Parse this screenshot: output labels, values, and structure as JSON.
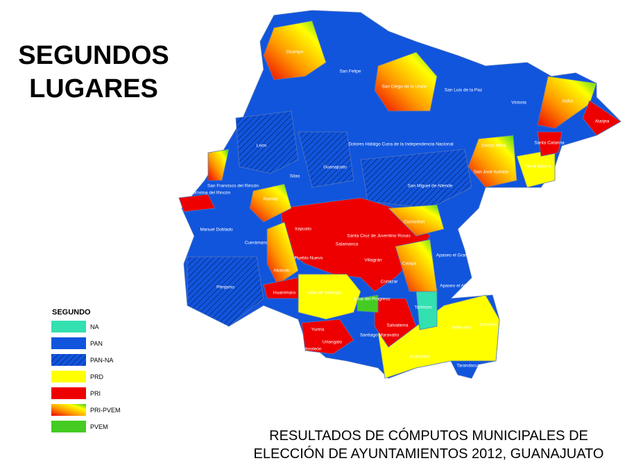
{
  "title": [
    "SEGUNDOS",
    "LUGARES"
  ],
  "legend": {
    "title": "SEGUNDO",
    "items": [
      {
        "name": "NA",
        "color": "#33e0b0"
      },
      {
        "name": "PAN",
        "color": "#1155dd"
      },
      {
        "name": "PAN-NA",
        "color": "#1155dd",
        "hatch": true
      },
      {
        "name": "PRD",
        "color": "#ffff00"
      },
      {
        "name": "PRI",
        "color": "#ee0000"
      },
      {
        "name": "PRI-PVEM",
        "colors": [
          "#ee0000",
          "#ff9900",
          "#ffff00",
          "#33cc33"
        ]
      },
      {
        "name": "PVEM",
        "color": "#44cc22"
      }
    ]
  },
  "municipalities": [
    "Ocampo",
    "San Felipe",
    "San Diego de la Unión",
    "San Luis de la Paz",
    "Victoria",
    "Xichú",
    "Atarjea",
    "León",
    "Dolores Hidalgo Cuna de la Independencia Nacional",
    "Doctor Mora",
    "Santa Catarina",
    "Guanajuato",
    "Silao",
    "San José Iturbide",
    "Tierra Blanca",
    "San Francisco del Rincón",
    "Purísima del Rincón",
    "San Miguel de Allende",
    "Romita",
    "Irapuato",
    "Comonfort",
    "Manuel Doblado",
    "Santa Cruz de Juventino Rosas",
    "Salamanca",
    "Cuerámaro",
    "Apaseo el Grande",
    "Pueblo Nuevo",
    "Villagrán",
    "Celaya",
    "Abasolo",
    "Cortazar",
    "Apaseo el Alto",
    "Pénjamo",
    "Valle de Santiago",
    "Huanímaro",
    "Jaral del Progreso",
    "Tarimoro",
    "Salvatierra",
    "Jerécuaro",
    "Coroneo",
    "Yuriria",
    "Santiago Maravatío",
    "Uriangato",
    "Moroleón",
    "Acámbaro",
    "Tarandacuao"
  ],
  "caption": [
    "RESULTADOS DE CÓMPUTOS MUNICIPALES DE",
    "ELECCIÓN DE AYUNTAMIENTOS 2012, GUANAJUATO"
  ]
}
